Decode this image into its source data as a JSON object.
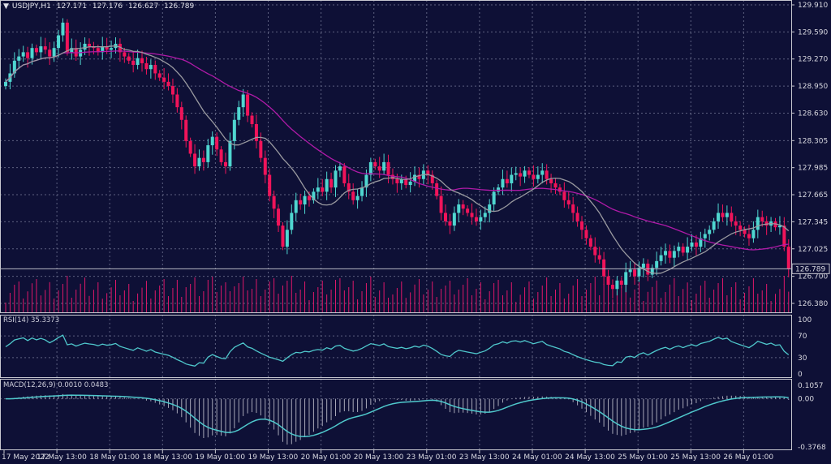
{
  "header": {
    "symbol": "USDJPY,H1",
    "open": "127.171",
    "high": "127.176",
    "low": "126.627",
    "close": "126.789"
  },
  "rsi": {
    "label": "RSI(14)",
    "value": "35.3373",
    "levels": [
      "100",
      "70",
      "30",
      "0"
    ]
  },
  "macd": {
    "label": "MACD(12,26,9)",
    "main": "0.0010",
    "signal": "0.0483",
    "axis": [
      "0.1057",
      "0.00",
      "-0.3768"
    ]
  },
  "colors": {
    "background": "#0e1036",
    "bull": "#4fd6d0",
    "bear": "#f0145a",
    "ma_fast": "#9a9aa0",
    "ma_slow": "#b01aa8",
    "indicator": "#4fc8cc",
    "volume": "#e0186a"
  },
  "chart_data": {
    "type": "candlestick",
    "instrument": "USDJPY",
    "timeframe": "H1",
    "price_ticks": [
      "129.910",
      "129.590",
      "129.270",
      "128.950",
      "128.630",
      "128.305",
      "127.985",
      "127.665",
      "127.345",
      "127.025",
      "126.700",
      "126.380"
    ],
    "ylim": [
      126.38,
      129.91
    ],
    "current_price": "126.789",
    "time_labels": [
      "17 May 2022",
      "17 May 13:00",
      "18 May 01:00",
      "18 May 13:00",
      "19 May 01:00",
      "19 May 13:00",
      "20 May 01:00",
      "20 May 13:00",
      "23 May 01:00",
      "23 May 13:00",
      "24 May 01:00",
      "24 May 13:00",
      "25 May 01:00",
      "25 May 13:00",
      "26 May 01:00"
    ],
    "grid": true,
    "closes": [
      129.0,
      129.1,
      129.25,
      129.3,
      129.35,
      129.28,
      129.4,
      129.35,
      129.42,
      129.38,
      129.3,
      129.4,
      129.55,
      129.7,
      129.35,
      129.4,
      129.3,
      129.38,
      129.45,
      129.42,
      129.4,
      129.35,
      129.42,
      129.38,
      129.4,
      129.45,
      129.35,
      129.3,
      129.25,
      129.2,
      129.28,
      129.22,
      129.15,
      129.2,
      129.1,
      129.05,
      129.0,
      128.95,
      128.85,
      128.7,
      128.55,
      128.3,
      128.15,
      128.0,
      128.1,
      128.05,
      128.25,
      128.35,
      128.2,
      128.05,
      128.0,
      128.3,
      128.55,
      128.7,
      128.85,
      128.6,
      128.5,
      128.3,
      128.1,
      127.9,
      127.65,
      127.5,
      127.3,
      127.05,
      127.25,
      127.45,
      127.6,
      127.55,
      127.65,
      127.6,
      127.7,
      127.75,
      127.7,
      127.85,
      127.75,
      127.95,
      128.0,
      127.8,
      127.7,
      127.6,
      127.65,
      127.75,
      127.9,
      128.05,
      128.0,
      127.95,
      128.05,
      127.9,
      127.85,
      127.8,
      127.85,
      127.78,
      127.82,
      127.9,
      127.85,
      127.95,
      127.9,
      127.8,
      127.65,
      127.45,
      127.35,
      127.3,
      127.45,
      127.55,
      127.5,
      127.45,
      127.4,
      127.35,
      127.4,
      127.45,
      127.55,
      127.7,
      127.75,
      127.85,
      127.8,
      127.9,
      127.92,
      127.88,
      127.95,
      127.9,
      127.85,
      127.9,
      127.95,
      127.85,
      127.8,
      127.75,
      127.7,
      127.6,
      127.55,
      127.45,
      127.35,
      127.25,
      127.15,
      127.05,
      126.95,
      126.9,
      126.7,
      126.6,
      126.55,
      126.65,
      126.6,
      126.75,
      126.78,
      126.7,
      126.8,
      126.85,
      126.72,
      126.8,
      126.88,
      126.95,
      127.0,
      126.92,
      127.0,
      127.05,
      126.98,
      127.05,
      127.1,
      127.05,
      127.15,
      127.2,
      127.25,
      127.35,
      127.45,
      127.4,
      127.45,
      127.35,
      127.3,
      127.25,
      127.2,
      127.15,
      127.25,
      127.4,
      127.35,
      127.3,
      127.35,
      127.28,
      127.3,
      127.05,
      126.789
    ]
  }
}
